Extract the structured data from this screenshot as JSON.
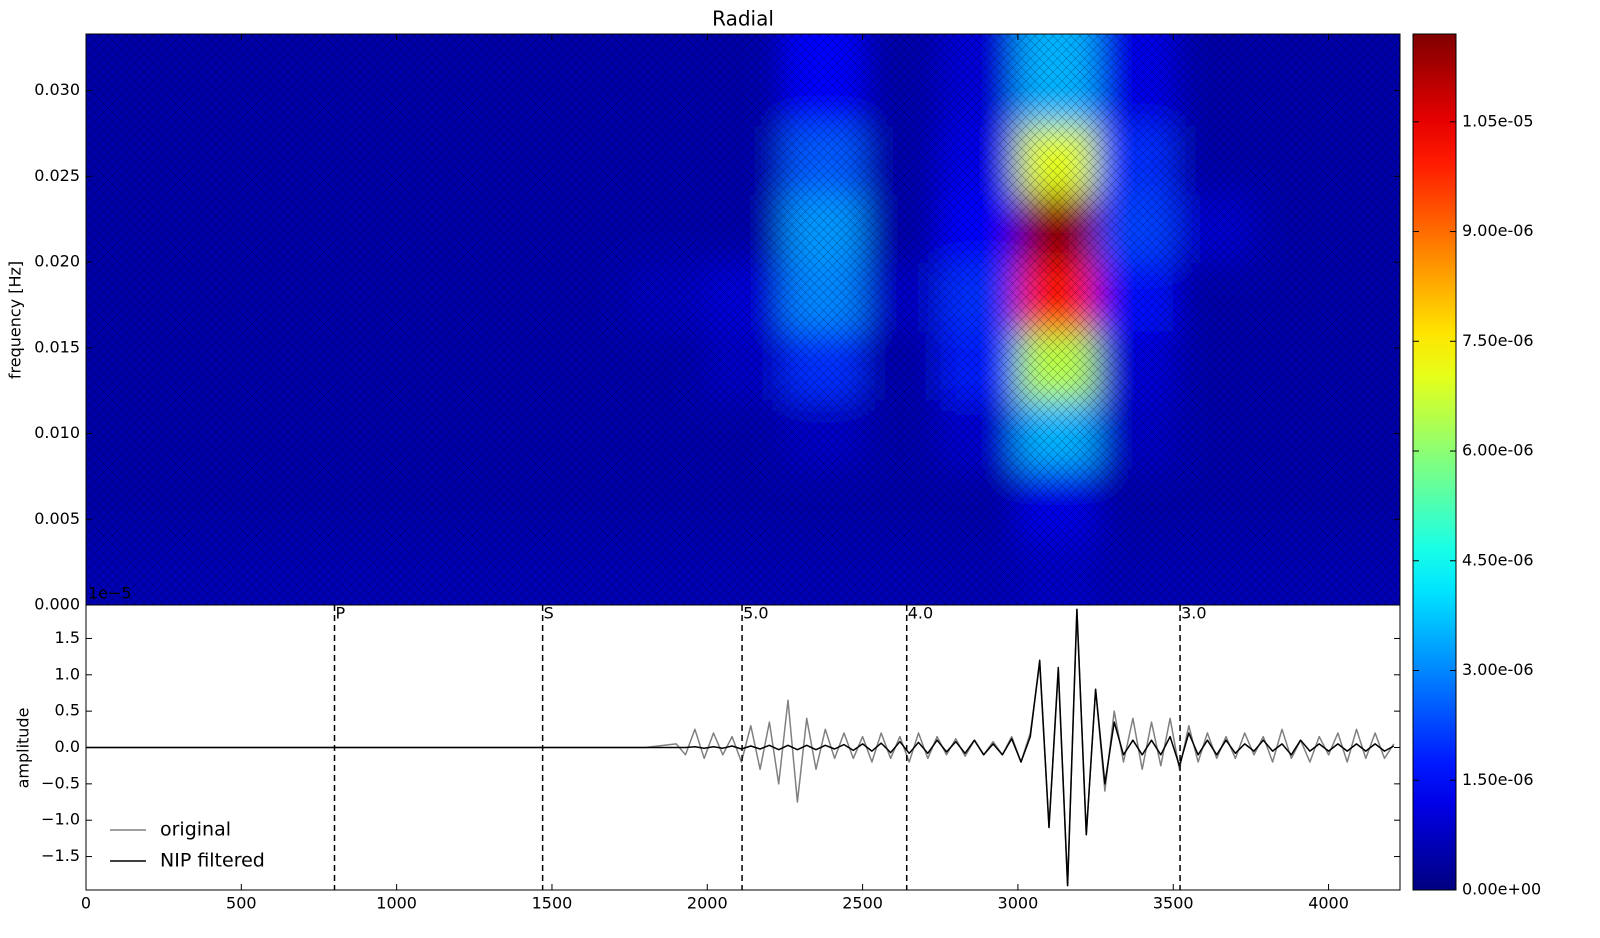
{
  "chart_data": [
    {
      "type": "heatmap",
      "title": "Radial",
      "ylabel": "frequency [Hz]",
      "x_centers": [
        125,
        375,
        625,
        875,
        1125,
        1375,
        1625,
        1875,
        2125,
        2375,
        2625,
        2875,
        3125,
        3375,
        3625,
        3875,
        4125
      ],
      "y_centers": [
        0.002,
        0.006,
        0.01,
        0.014,
        0.018,
        0.022,
        0.026,
        0.03
      ],
      "z": [
        [
          6e-07,
          6e-07,
          6e-07,
          6e-07,
          6e-07,
          6e-07,
          6e-07,
          6e-07,
          6e-07,
          6e-07,
          6e-07,
          6e-07,
          8e-07,
          6e-07,
          6e-07,
          6e-07,
          6e-07
        ],
        [
          5e-07,
          5e-07,
          5e-07,
          5e-07,
          5e-07,
          5e-07,
          5e-07,
          5e-07,
          5e-07,
          5e-07,
          5e-07,
          5e-07,
          1.2e-06,
          5e-07,
          5e-07,
          5e-07,
          5e-07
        ],
        [
          5e-07,
          5e-07,
          5e-07,
          5e-07,
          5e-07,
          5e-07,
          5e-07,
          5e-07,
          5e-07,
          8e-07,
          5e-07,
          9e-07,
          3.5e-06,
          8e-07,
          5e-07,
          5e-07,
          5e-07
        ],
        [
          5e-07,
          5e-07,
          5e-07,
          5e-07,
          5e-07,
          5e-07,
          5e-07,
          5e-07,
          8e-07,
          2e-06,
          5e-07,
          1.8e-06,
          6.5e-06,
          1e-06,
          5e-07,
          5e-07,
          5e-07
        ],
        [
          5e-07,
          5e-07,
          5e-07,
          5e-07,
          5e-07,
          5e-07,
          5e-07,
          7e-07,
          1e-06,
          3e-06,
          8e-07,
          2e-06,
          1e-05,
          1.6e-06,
          5e-07,
          5e-07,
          5e-07
        ],
        [
          5e-07,
          5e-07,
          5e-07,
          5e-07,
          5e-07,
          5e-07,
          5e-07,
          5e-07,
          5e-07,
          3.2e-06,
          5e-07,
          1.5e-06,
          1.15e-05,
          2.2e-06,
          9e-07,
          5e-07,
          5e-07
        ],
        [
          5e-07,
          5e-07,
          5e-07,
          5e-07,
          5e-07,
          5e-07,
          5e-07,
          5e-07,
          5e-07,
          2.5e-06,
          5e-07,
          1.2e-06,
          7e-06,
          2e-06,
          5e-07,
          5e-07,
          5e-07
        ],
        [
          5e-07,
          5e-07,
          5e-07,
          5e-07,
          5e-07,
          5e-07,
          5e-07,
          5e-07,
          5e-07,
          1.5e-06,
          5e-07,
          1e-06,
          3.5e-06,
          1.2e-06,
          5e-07,
          5e-07,
          5e-07
        ]
      ],
      "xlim": [
        0,
        4230
      ],
      "ylim": [
        0,
        0.0333
      ],
      "yticks": [
        {
          "value": 0,
          "label": "0.000"
        },
        {
          "value": 0.005,
          "label": "0.005"
        },
        {
          "value": 0.01,
          "label": "0.010"
        },
        {
          "value": 0.015,
          "label": "0.015"
        },
        {
          "value": 0.02,
          "label": "0.020"
        },
        {
          "value": 0.025,
          "label": "0.025"
        },
        {
          "value": 0.03,
          "label": "0.030"
        }
      ],
      "colorbar": {
        "zlim": [
          0,
          1.17e-05
        ],
        "ticks": [
          {
            "value": 0,
            "label": "0.00e+00"
          },
          {
            "value": 1.5e-06,
            "label": "1.50e-06"
          },
          {
            "value": 3e-06,
            "label": "3.00e-06"
          },
          {
            "value": 4.5e-06,
            "label": "4.50e-06"
          },
          {
            "value": 6e-06,
            "label": "6.00e-06"
          },
          {
            "value": 7.5e-06,
            "label": "7.50e-06"
          },
          {
            "value": 9e-06,
            "label": "9.00e-06"
          },
          {
            "value": 1.05e-05,
            "label": "1.05e-05"
          }
        ]
      },
      "hatch": true
    },
    {
      "type": "line",
      "ylabel": "amplitude",
      "offset_label": "1e−5",
      "x": [
        0,
        500,
        1000,
        1500,
        1800,
        1900,
        1930,
        1960,
        1990,
        2020,
        2050,
        2080,
        2110,
        2140,
        2170,
        2200,
        2230,
        2260,
        2290,
        2320,
        2350,
        2380,
        2410,
        2440,
        2470,
        2500,
        2530,
        2560,
        2590,
        2620,
        2650,
        2680,
        2710,
        2740,
        2770,
        2800,
        2830,
        2860,
        2890,
        2920,
        2950,
        2980,
        3010,
        3040,
        3070,
        3100,
        3130,
        3160,
        3190,
        3220,
        3250,
        3280,
        3310,
        3340,
        3370,
        3400,
        3430,
        3460,
        3490,
        3520,
        3550,
        3580,
        3610,
        3640,
        3670,
        3700,
        3730,
        3760,
        3790,
        3820,
        3850,
        3880,
        3910,
        3940,
        3970,
        4000,
        4030,
        4060,
        4090,
        4120,
        4150,
        4180,
        4210
      ],
      "series": [
        {
          "name": "original",
          "color": "#808080",
          "values": [
            0,
            0,
            0,
            0,
            0,
            0.05,
            -0.1,
            0.25,
            -0.15,
            0.2,
            -0.1,
            0.15,
            -0.2,
            0.3,
            -0.3,
            0.35,
            -0.5,
            0.65,
            -0.75,
            0.4,
            -0.3,
            0.25,
            -0.15,
            0.2,
            -0.15,
            0.15,
            -0.2,
            0.2,
            -0.15,
            0.15,
            -0.2,
            0.2,
            -0.15,
            0.15,
            -0.1,
            0.12,
            -0.12,
            0.1,
            -0.1,
            0.08,
            -0.1,
            0.15,
            -0.2,
            0.2,
            1.15,
            -1.1,
            1.05,
            -1.9,
            1.9,
            -1.2,
            0.8,
            -0.6,
            0.5,
            -0.2,
            0.4,
            -0.3,
            0.35,
            -0.25,
            0.4,
            -0.3,
            0.3,
            -0.2,
            0.2,
            -0.15,
            0.15,
            -0.15,
            0.2,
            -0.1,
            0.15,
            -0.2,
            0.25,
            -0.15,
            0.1,
            -0.2,
            0.15,
            -0.1,
            0.2,
            -0.2,
            0.25,
            -0.15,
            0.2,
            -0.15,
            0.05
          ]
        },
        {
          "name": "NIP filtered",
          "color": "#000000",
          "values": [
            0,
            0,
            0,
            0,
            0,
            0,
            0,
            0.01,
            -0.01,
            0.01,
            -0.01,
            0.02,
            -0.02,
            0.02,
            -0.02,
            0.03,
            -0.03,
            0.03,
            -0.03,
            0.03,
            -0.03,
            0.03,
            -0.02,
            0.04,
            -0.04,
            0.05,
            -0.05,
            0.06,
            -0.07,
            0.08,
            -0.08,
            0.07,
            -0.08,
            0.1,
            -0.06,
            0.08,
            -0.08,
            0.1,
            -0.1,
            0.05,
            -0.1,
            0.12,
            -0.2,
            0.15,
            1.2,
            -1.1,
            1.1,
            -1.9,
            1.9,
            -1.2,
            0.8,
            -0.5,
            0.35,
            -0.1,
            0.1,
            -0.1,
            0.1,
            -0.1,
            0.15,
            -0.25,
            0.2,
            -0.1,
            0.1,
            -0.1,
            0.1,
            -0.08,
            0.05,
            -0.05,
            0.1,
            -0.05,
            0.05,
            -0.1,
            0.1,
            -0.05,
            0.05,
            -0.05,
            0.05,
            -0.05,
            0.05,
            -0.05,
            0.05,
            -0.05,
            0.02
          ]
        }
      ],
      "xlim": [
        0,
        4230
      ],
      "ylim": [
        -1.96,
        1.96
      ],
      "xticks": [
        0,
        500,
        1000,
        1500,
        2000,
        2500,
        3000,
        3500,
        4000
      ],
      "yticks": [
        {
          "value": -1.5,
          "label": "−1.5"
        },
        {
          "value": -1,
          "label": "−1.0"
        },
        {
          "value": -0.5,
          "label": "−0.5"
        },
        {
          "value": 0,
          "label": "0.0"
        },
        {
          "value": 0.5,
          "label": "0.5"
        },
        {
          "value": 1,
          "label": "1.0"
        },
        {
          "value": 1.5,
          "label": "1.5"
        }
      ],
      "markers": [
        {
          "label": "P",
          "x": 800
        },
        {
          "label": "S",
          "x": 1470
        },
        {
          "label": "5.0",
          "x": 2112
        },
        {
          "label": "4.0",
          "x": 2642
        },
        {
          "label": "3.0",
          "x": 3522
        }
      ],
      "legend": "lower left"
    }
  ]
}
